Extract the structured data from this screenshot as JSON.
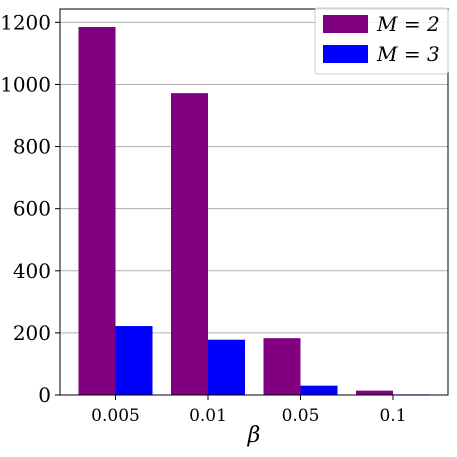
{
  "chart_data": {
    "type": "bar",
    "categories": [
      "0.005",
      "0.01",
      "0.05",
      "0.1"
    ],
    "series": [
      {
        "name": "M = 2",
        "values": [
          1185,
          972,
          183,
          14
        ],
        "color": "#800080"
      },
      {
        "name": "M = 3",
        "values": [
          222,
          178,
          30,
          2
        ],
        "color": "#0000ff"
      }
    ],
    "title": "",
    "xlabel": "β",
    "ylabel": "",
    "ylim": [
      0,
      1243
    ],
    "yticks": [
      "0",
      "200",
      "400",
      "600",
      "800",
      "1000",
      "1200"
    ],
    "grid": "horizontal",
    "legend_position": "top-right",
    "grid_color": "#b0b0b0"
  }
}
